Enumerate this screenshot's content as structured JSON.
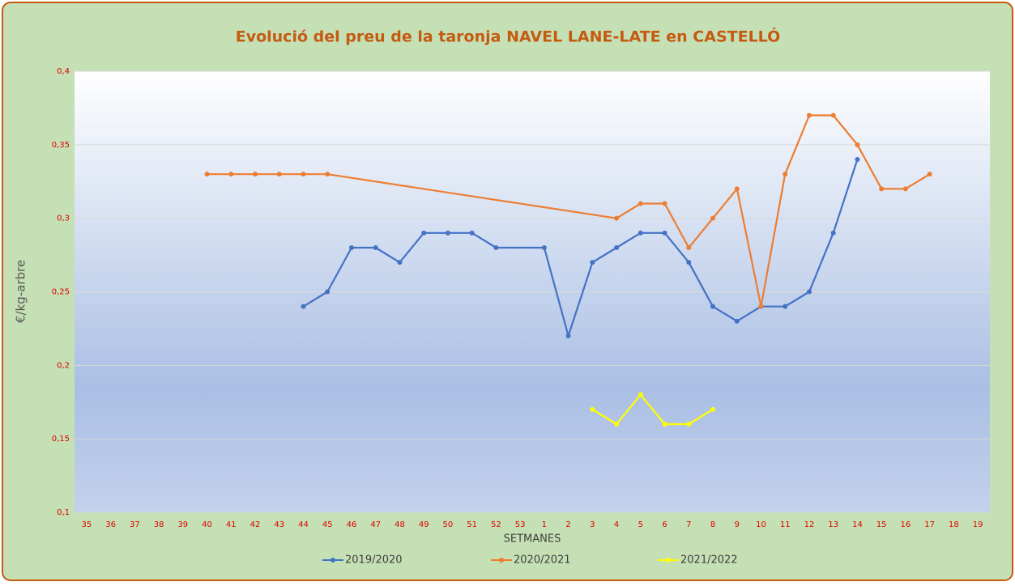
{
  "chart_data": {
    "type": "line",
    "title": "Evolució del preu de la taronja NAVEL LANE-LATE en CASTELLÓ",
    "x_label": "SETMANES",
    "y_label": "€/kg-arbre",
    "categories": [
      "35",
      "36",
      "37",
      "38",
      "39",
      "40",
      "41",
      "42",
      "43",
      "44",
      "45",
      "46",
      "47",
      "48",
      "49",
      "50",
      "51",
      "52",
      "53",
      "1",
      "2",
      "3",
      "4",
      "5",
      "6",
      "7",
      "8",
      "9",
      "10",
      "11",
      "12",
      "13",
      "14",
      "15",
      "16",
      "17",
      "18",
      "19"
    ],
    "series": [
      {
        "name": "2019/2020",
        "color": "#4472c4",
        "values": [
          null,
          null,
          null,
          null,
          null,
          null,
          null,
          null,
          null,
          0.24,
          0.25,
          0.28,
          0.28,
          0.27,
          0.29,
          0.29,
          0.29,
          0.28,
          null,
          0.28,
          0.22,
          0.27,
          0.28,
          0.29,
          0.29,
          0.27,
          0.24,
          0.23,
          0.24,
          0.24,
          0.25,
          0.29,
          0.34,
          null,
          null,
          null,
          null,
          null
        ]
      },
      {
        "name": "2020/2021",
        "color": "#ed7d31",
        "values": [
          null,
          null,
          null,
          null,
          null,
          0.33,
          0.33,
          0.33,
          0.33,
          0.33,
          0.33,
          null,
          null,
          null,
          null,
          null,
          null,
          null,
          null,
          null,
          null,
          null,
          0.3,
          0.31,
          0.31,
          0.28,
          0.3,
          0.32,
          0.24,
          0.33,
          0.37,
          0.37,
          0.35,
          0.32,
          0.32,
          0.33,
          null,
          null
        ]
      },
      {
        "name": "2021/2022",
        "color": "#ffff00",
        "values": [
          null,
          null,
          null,
          null,
          null,
          null,
          null,
          null,
          null,
          null,
          null,
          null,
          null,
          null,
          null,
          null,
          null,
          null,
          null,
          null,
          null,
          0.17,
          0.16,
          0.18,
          0.16,
          0.16,
          0.17,
          null,
          null,
          null,
          null,
          null,
          null,
          null,
          null,
          null,
          null,
          null
        ]
      }
    ],
    "ylim": [
      0.1,
      0.4
    ],
    "yticks": [
      {
        "value": 0.1,
        "label": "0,1"
      },
      {
        "value": 0.15,
        "label": "0,15"
      },
      {
        "value": 0.2,
        "label": "0,2"
      },
      {
        "value": 0.25,
        "label": "0,25"
      },
      {
        "value": 0.3,
        "label": "0,3"
      },
      {
        "value": 0.35,
        "label": "0,35"
      },
      {
        "value": 0.4,
        "label": "0,4"
      }
    ],
    "grid": true,
    "span_gaps": true,
    "legend": "bottom"
  }
}
